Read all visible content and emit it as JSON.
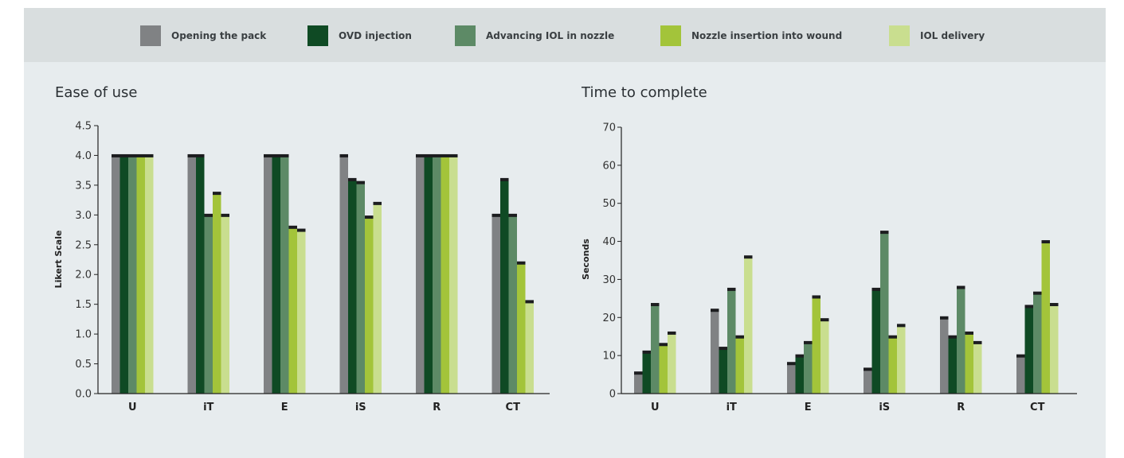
{
  "legend": [
    {
      "label": "Opening the pack",
      "color": "#808284"
    },
    {
      "label": "OVD injection",
      "color": "#0f4a24"
    },
    {
      "label": "Advancing IOL in nozzle",
      "color": "#5d8a66"
    },
    {
      "label": "Nozzle insertion into wound",
      "color": "#a3c43a"
    },
    {
      "label": "IOL delivery",
      "color": "#c9de8f"
    }
  ],
  "chart_data": [
    {
      "type": "bar",
      "title": "Ease of use",
      "xlabel": "",
      "ylabel": "Likert Scale",
      "categories": [
        "U",
        "iT",
        "E",
        "iS",
        "R",
        "CT"
      ],
      "ylim": [
        0,
        4.5
      ],
      "yticks": [
        "0.0",
        "0.5",
        "1.0",
        "1.5",
        "2.0",
        "2.5",
        "3.0",
        "3.5",
        "4.0",
        "4.5"
      ],
      "series": [
        {
          "name": "Opening the pack",
          "values": [
            4.0,
            4.0,
            4.0,
            4.0,
            4.0,
            3.0
          ]
        },
        {
          "name": "OVD injection",
          "values": [
            4.0,
            4.0,
            4.0,
            3.6,
            4.0,
            3.6
          ]
        },
        {
          "name": "Advancing IOL in nozzle",
          "values": [
            4.0,
            3.0,
            4.0,
            3.55,
            4.0,
            3.0
          ]
        },
        {
          "name": "Nozzle insertion into wound",
          "values": [
            4.0,
            3.37,
            2.8,
            2.97,
            4.0,
            2.2
          ]
        },
        {
          "name": "IOL delivery",
          "values": [
            4.0,
            3.0,
            2.75,
            3.2,
            4.0,
            1.55
          ]
        }
      ]
    },
    {
      "type": "bar",
      "title": "Time to complete",
      "xlabel": "",
      "ylabel": "Seconds",
      "categories": [
        "U",
        "iT",
        "E",
        "iS",
        "R",
        "CT"
      ],
      "ylim": [
        0,
        70
      ],
      "yticks": [
        "0",
        "10",
        "20",
        "30",
        "40",
        "50",
        "60",
        "70"
      ],
      "series": [
        {
          "name": "Opening the pack",
          "values": [
            5.5,
            22,
            8,
            6.5,
            20,
            10
          ]
        },
        {
          "name": "OVD injection",
          "values": [
            11,
            12,
            10,
            27.5,
            15,
            23
          ]
        },
        {
          "name": "Advancing IOL in nozzle",
          "values": [
            23.5,
            27.5,
            13.5,
            42.5,
            28,
            26.5
          ]
        },
        {
          "name": "Nozzle insertion into wound",
          "values": [
            13,
            15,
            25.5,
            15,
            16,
            40
          ]
        },
        {
          "name": "IOL delivery",
          "values": [
            16,
            36,
            19.5,
            18,
            13.5,
            23.5
          ]
        }
      ]
    }
  ],
  "cap_color": "#1c1d1f"
}
